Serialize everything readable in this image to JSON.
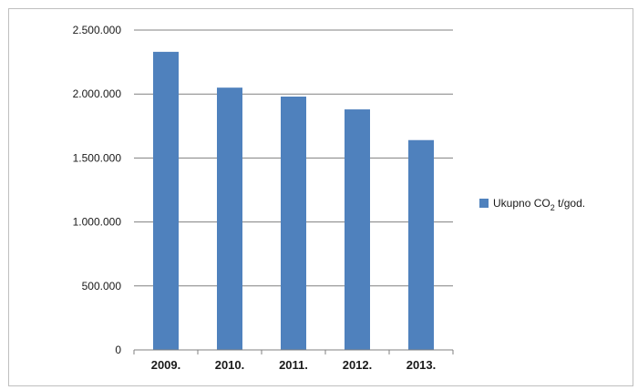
{
  "chart_data": {
    "type": "bar",
    "categories": [
      "2009.",
      "2010.",
      "2011.",
      "2012.",
      "2013."
    ],
    "series": [
      {
        "name": "Ukupno CO₂ t/god.",
        "name_parts": {
          "prefix": "Ukupno CO",
          "subscript": "2",
          "suffix": " t/god."
        },
        "color": "#4f81bd",
        "values": [
          2330000,
          2050000,
          1980000,
          1880000,
          1640000
        ]
      }
    ],
    "ylim": [
      0,
      2500000
    ],
    "y_ticks": [
      0,
      500000,
      1000000,
      1500000,
      2000000,
      2500000
    ],
    "y_tick_labels": [
      "0",
      "500.000",
      "1.000.000",
      "1.500.000",
      "2.000.000",
      "2.500.000"
    ],
    "grid": true,
    "legend_position": "right",
    "gridline_color": "#808080",
    "axis_color": "#808080"
  }
}
